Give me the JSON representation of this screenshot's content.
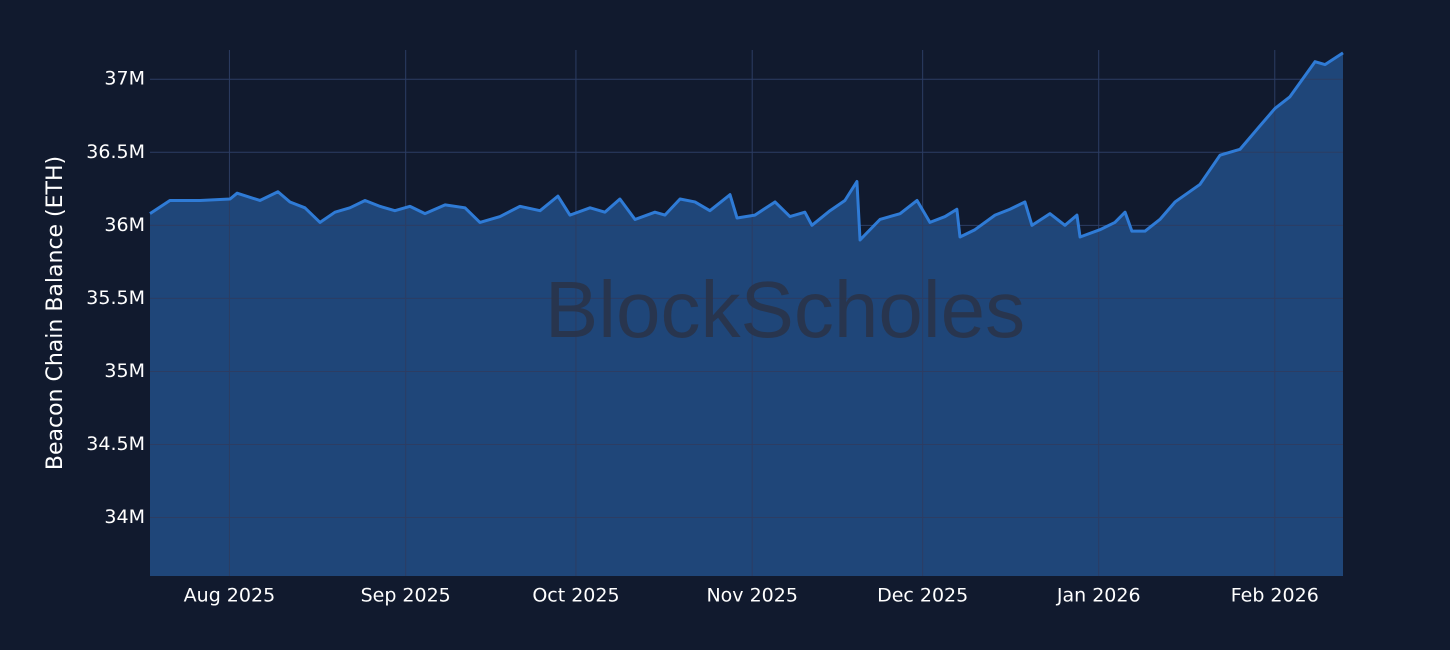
{
  "chart_data": {
    "type": "area",
    "y_label": "Beacon Chain Balance (ETH)",
    "watermark": "BlockScholes",
    "color": "#2f7bd6",
    "fill_color": "#1f4679",
    "grid": true,
    "xlim": [
      2025.5425,
      2026.1178
    ],
    "xticks": [
      {
        "value": 2025.5808,
        "label": "Aug 2025"
      },
      {
        "value": 2025.6658,
        "label": "Sep 2025"
      },
      {
        "value": 2025.7479,
        "label": "Oct 2025"
      },
      {
        "value": 2025.8329,
        "label": "Nov 2025"
      },
      {
        "value": 2025.9151,
        "label": "Dec 2025"
      },
      {
        "value": 2026.0,
        "label": "Jan 2026"
      },
      {
        "value": 2026.0849,
        "label": "Feb 2026"
      }
    ],
    "ylim": [
      33600000,
      37200000
    ],
    "yticks": [
      {
        "value": 34000000,
        "label": "34M"
      },
      {
        "value": 34500000,
        "label": "34.5M"
      },
      {
        "value": 35000000,
        "label": "35M"
      },
      {
        "value": 35500000,
        "label": "35.5M"
      },
      {
        "value": 36000000,
        "label": "36M"
      },
      {
        "value": 36500000,
        "label": "36.5M"
      },
      {
        "value": 37000000,
        "label": "37M"
      }
    ],
    "x": [
      2025.5425,
      2025.5521,
      2025.5666,
      2025.5811,
      2025.5845,
      2025.5955,
      2025.6042,
      2025.61,
      2025.6172,
      2025.6245,
      2025.6317,
      2025.6389,
      2025.6462,
      2025.6534,
      2025.6606,
      2025.6679,
      2025.6751,
      2025.6848,
      2025.6944,
      2025.7016,
      2025.7113,
      2025.7209,
      2025.7306,
      2025.7392,
      2025.745,
      2025.7547,
      2025.7619,
      2025.7691,
      2025.7764,
      2025.786,
      2025.7908,
      2025.7981,
      2025.8053,
      2025.8125,
      2025.8222,
      2025.8256,
      2025.8342,
      2025.8439,
      2025.8511,
      2025.8583,
      2025.8617,
      2025.8704,
      2025.8776,
      2025.8834,
      2025.8849,
      2025.8945,
      2025.9042,
      2025.9124,
      2025.9186,
      2025.9259,
      2025.9316,
      2025.9331,
      2025.9403,
      2025.95,
      2025.9572,
      2025.9644,
      2025.9678,
      2025.9765,
      2025.9837,
      2025.9895,
      2025.991,
      2026.0006,
      2026.0078,
      2026.0127,
      2026.016,
      2026.0223,
      2026.0295,
      2026.0368,
      2026.0488,
      2026.0585,
      2026.0681,
      2026.0777,
      2026.085,
      2026.0922,
      2026.1043,
      2026.1091,
      2026.1178
    ],
    "values": [
      36080000,
      36170000,
      36170000,
      36180000,
      36220000,
      36170000,
      36230000,
      36160000,
      36120000,
      36020000,
      36090000,
      36120000,
      36170000,
      36130000,
      36100000,
      36130000,
      36080000,
      36140000,
      36120000,
      36020000,
      36060000,
      36130000,
      36100000,
      36200000,
      36070000,
      36120000,
      36090000,
      36180000,
      36040000,
      36090000,
      36070000,
      36180000,
      36160000,
      36100000,
      36210000,
      36050000,
      36070000,
      36160000,
      36060000,
      36090000,
      36000000,
      36100000,
      36170000,
      36300000,
      35900000,
      36040000,
      36080000,
      36170000,
      36020000,
      36060000,
      36110000,
      35920000,
      35970000,
      36070000,
      36110000,
      36160000,
      36000000,
      36080000,
      36000000,
      36070000,
      35920000,
      35970000,
      36020000,
      36090000,
      35960000,
      35960000,
      36040000,
      36160000,
      36280000,
      36480000,
      36520000,
      36680000,
      36800000,
      36880000,
      37120000,
      37100000,
      37180000
    ]
  }
}
